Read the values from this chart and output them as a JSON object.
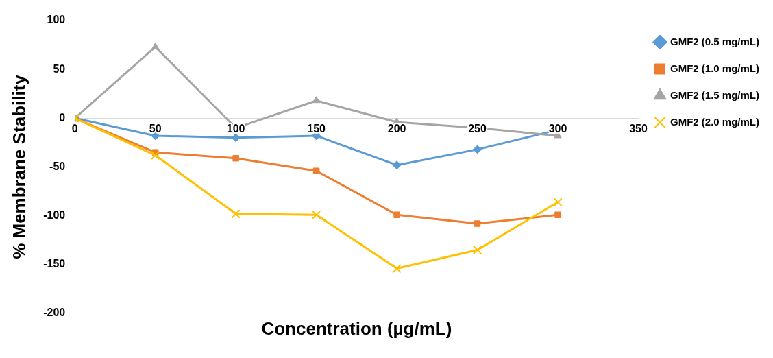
{
  "chart_data": {
    "type": "line",
    "xlabel": "Concentration (µg/mL)",
    "ylabel": "% Membrane Stability",
    "x": [
      0,
      50,
      100,
      150,
      200,
      250,
      300
    ],
    "series": [
      {
        "name": "GMF2 (0.5 mg/mL)",
        "color": "#5b9bd5",
        "marker": "diamond",
        "values": [
          0,
          -18,
          -20,
          -18,
          -48,
          -32,
          -12
        ]
      },
      {
        "name": "GMF2 (1.0 mg/mL)",
        "color": "#ed7d31",
        "marker": "square",
        "values": [
          0,
          -35,
          -41,
          -54,
          -99,
          -108,
          -99
        ]
      },
      {
        "name": "GMF2 (1.5 mg/mL)",
        "color": "#a5a5a5",
        "marker": "triangle",
        "values": [
          0,
          73,
          -10,
          18,
          -4,
          -10,
          -18
        ]
      },
      {
        "name": "GMF2 (2.0 mg/mL)",
        "color": "#ffc000",
        "marker": "cross",
        "values": [
          0,
          -38,
          -98,
          -99,
          -154,
          -135,
          -86
        ]
      }
    ],
    "xlim": [
      0,
      350
    ],
    "xticks": [
      0,
      50,
      100,
      150,
      200,
      250,
      300,
      350
    ],
    "ylim": [
      -200,
      100
    ],
    "yticks": [
      -200,
      -150,
      -100,
      -50,
      0,
      50,
      100
    ],
    "grid": false,
    "legend": "top right",
    "line_style": "solid"
  }
}
